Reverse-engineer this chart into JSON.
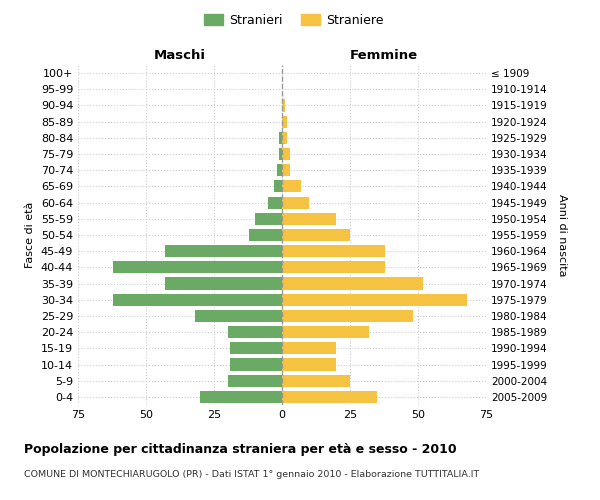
{
  "age_groups": [
    "0-4",
    "5-9",
    "10-14",
    "15-19",
    "20-24",
    "25-29",
    "30-34",
    "35-39",
    "40-44",
    "45-49",
    "50-54",
    "55-59",
    "60-64",
    "65-69",
    "70-74",
    "75-79",
    "80-84",
    "85-89",
    "90-94",
    "95-99",
    "100+"
  ],
  "birth_years": [
    "2005-2009",
    "2000-2004",
    "1995-1999",
    "1990-1994",
    "1985-1989",
    "1980-1984",
    "1975-1979",
    "1970-1974",
    "1965-1969",
    "1960-1964",
    "1955-1959",
    "1950-1954",
    "1945-1949",
    "1940-1944",
    "1935-1939",
    "1930-1934",
    "1925-1929",
    "1920-1924",
    "1915-1919",
    "1910-1914",
    "≤ 1909"
  ],
  "maschi": [
    30,
    20,
    19,
    19,
    20,
    32,
    62,
    43,
    62,
    43,
    12,
    10,
    5,
    3,
    2,
    1,
    1,
    0,
    0,
    0,
    0
  ],
  "femmine": [
    35,
    25,
    20,
    20,
    32,
    48,
    68,
    52,
    38,
    38,
    25,
    20,
    10,
    7,
    3,
    3,
    2,
    2,
    1,
    0,
    0
  ],
  "male_color": "#6aaa64",
  "female_color": "#f5c242",
  "title": "Popolazione per cittadinanza straniera per età e sesso - 2010",
  "subtitle": "COMUNE DI MONTECHIARUGOLO (PR) - Dati ISTAT 1° gennaio 2010 - Elaborazione TUTTITALIA.IT",
  "legend_male": "Stranieri",
  "legend_female": "Straniere",
  "left_header": "Maschi",
  "right_header": "Femmine",
  "ylabel": "Fasce di età",
  "ylabel_right": "Anni di nascita",
  "xlim": 75,
  "background_color": "#ffffff",
  "bar_height": 0.75,
  "grid_color": "#cccccc"
}
